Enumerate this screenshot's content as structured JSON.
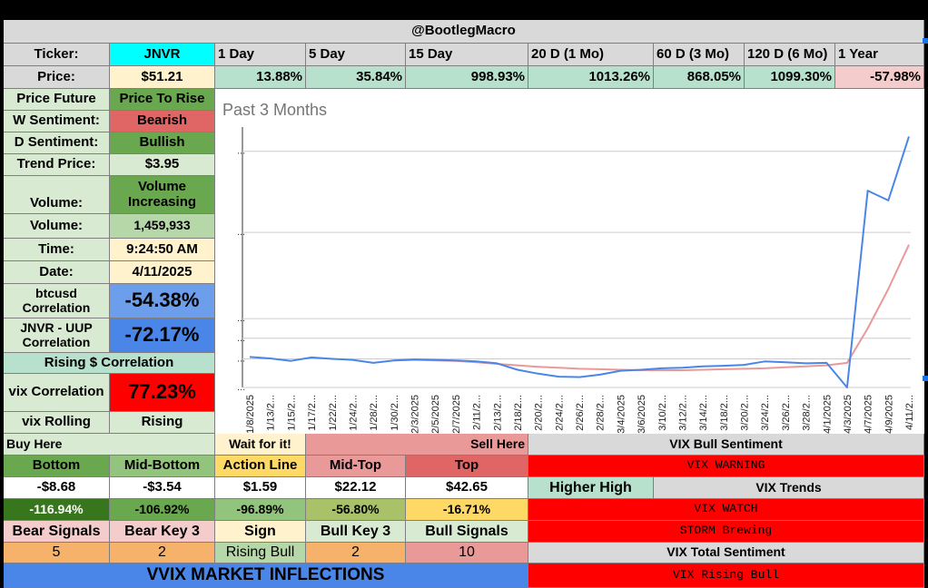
{
  "header": {
    "title": "@BootlegMacro"
  },
  "ticker_row": {
    "label": "Ticker:",
    "value": "JNVR",
    "periods": [
      "1 Day",
      "5 Day",
      "15 Day",
      "20 D (1 Mo)",
      "60 D (3 Mo)",
      "120 D (6 Mo)",
      "1 Year"
    ]
  },
  "price_row": {
    "label": "Price:",
    "value": "$51.21",
    "changes": [
      "13.88%",
      "35.84%",
      "998.93%",
      "1013.26%",
      "868.05%",
      "1099.30%",
      "-57.98%"
    ]
  },
  "left_panel": {
    "price_future": {
      "label": "Price Future",
      "value": "Price To Rise"
    },
    "w_sentiment": {
      "label": "W Sentiment:",
      "value": "Bearish"
    },
    "d_sentiment": {
      "label": "D Sentiment:",
      "value": "Bullish"
    },
    "trend_price": {
      "label": "Trend Price:",
      "value": "$3.95"
    },
    "volume_trend": {
      "label": "Volume:",
      "value": "Volume Increasing"
    },
    "volume": {
      "label": "Volume:",
      "value": "1,459,933"
    },
    "time": {
      "label": "Time:",
      "value": "9:24:50 AM"
    },
    "date": {
      "label": "Date:",
      "value": "4/11/2025"
    },
    "btcusd": {
      "label": "btcusd Correlation",
      "value": "-54.38%"
    },
    "uup": {
      "label": "JNVR - UUP Correlation",
      "value": "-72.17%"
    },
    "rising_corr": {
      "label": "Rising $ Correlation"
    },
    "vix_corr": {
      "label": "vix Correlation",
      "value": "77.23%"
    },
    "vix_rolling": {
      "label": "vix Rolling",
      "value": "Rising"
    }
  },
  "chart_data": {
    "type": "line",
    "title": "Past 3 Months",
    "x": [
      "1/8/2025",
      "1/13/2...",
      "1/15/2...",
      "1/17/2...",
      "1/22/2...",
      "1/24/2...",
      "1/28/2...",
      "1/30/2...",
      "2/3/2025",
      "2/5/2025",
      "2/7/2025",
      "2/11/2...",
      "2/13/2...",
      "2/18/2...",
      "2/20/2...",
      "2/24/2...",
      "2/26/2...",
      "2/28/2...",
      "3/4/2025",
      "3/6/2025",
      "3/10/2...",
      "3/12/2...",
      "3/14/2...",
      "3/18/2...",
      "3/20/2...",
      "3/24/2...",
      "3/26/2...",
      "3/28/2...",
      "4/1/2025",
      "4/3/2025",
      "4/7/2025",
      "4/9/2025",
      "4/11/2..."
    ],
    "y_ticks": [
      "...",
      "...",
      "...",
      "...",
      "...",
      "..."
    ],
    "series": [
      {
        "color": "#4a86e8",
        "values": [
          6.2,
          5.9,
          5.4,
          6.1,
          5.8,
          5.6,
          5.0,
          5.5,
          5.7,
          5.6,
          5.5,
          5.3,
          4.9,
          3.6,
          2.8,
          2.2,
          2.1,
          2.6,
          3.4,
          3.6,
          3.9,
          4.0,
          4.3,
          4.4,
          4.6,
          5.3,
          5.1,
          4.9,
          5.0,
          0.0,
          40.0,
          38.0,
          51.0
        ]
      },
      {
        "color": "#ea9999",
        "values": [
          null,
          null,
          null,
          null,
          null,
          null,
          null,
          5.5,
          5.6,
          5.5,
          5.4,
          5.1,
          4.8,
          4.5,
          4.2,
          4.0,
          3.8,
          3.7,
          3.6,
          3.5,
          3.5,
          3.5,
          3.6,
          3.7,
          3.8,
          3.9,
          4.1,
          4.3,
          4.5,
          5.0,
          12.0,
          20.0,
          29.0
        ]
      }
    ]
  },
  "levels": {
    "buy_here": "Buy Here",
    "wait": "Wait for it!",
    "sell_here": "Sell Here",
    "names": [
      "Bottom",
      "Mid-Bottom",
      "Action Line",
      "Mid-Top",
      "Top"
    ],
    "prices": [
      "-$8.68",
      "-$3.54",
      "$1.59",
      "$22.12",
      "$42.65"
    ],
    "pcts": [
      "-116.94%",
      "-106.92%",
      "-96.89%",
      "-56.80%",
      "-16.71%"
    ],
    "signal_names": [
      "Bear Signals",
      "Bear Key 3",
      "Sign",
      "Bull Key 3",
      "Bull Signals"
    ],
    "signal_values": [
      "5",
      "2",
      "Rising Bull",
      "2",
      "10"
    ]
  },
  "vix_panel": {
    "bull_sentiment": "VIX Bull Sentiment",
    "warning": "VIX WARNING",
    "higher_high": "Higher High",
    "trends": "VIX Trends",
    "watch": "VIX WATCH",
    "storm": "STORM Brewing",
    "total": "VIX Total Sentiment",
    "rising_bull": "VIX Rising Bull"
  },
  "footer": {
    "title": "VVIX MARKET INFLECTIONS"
  }
}
